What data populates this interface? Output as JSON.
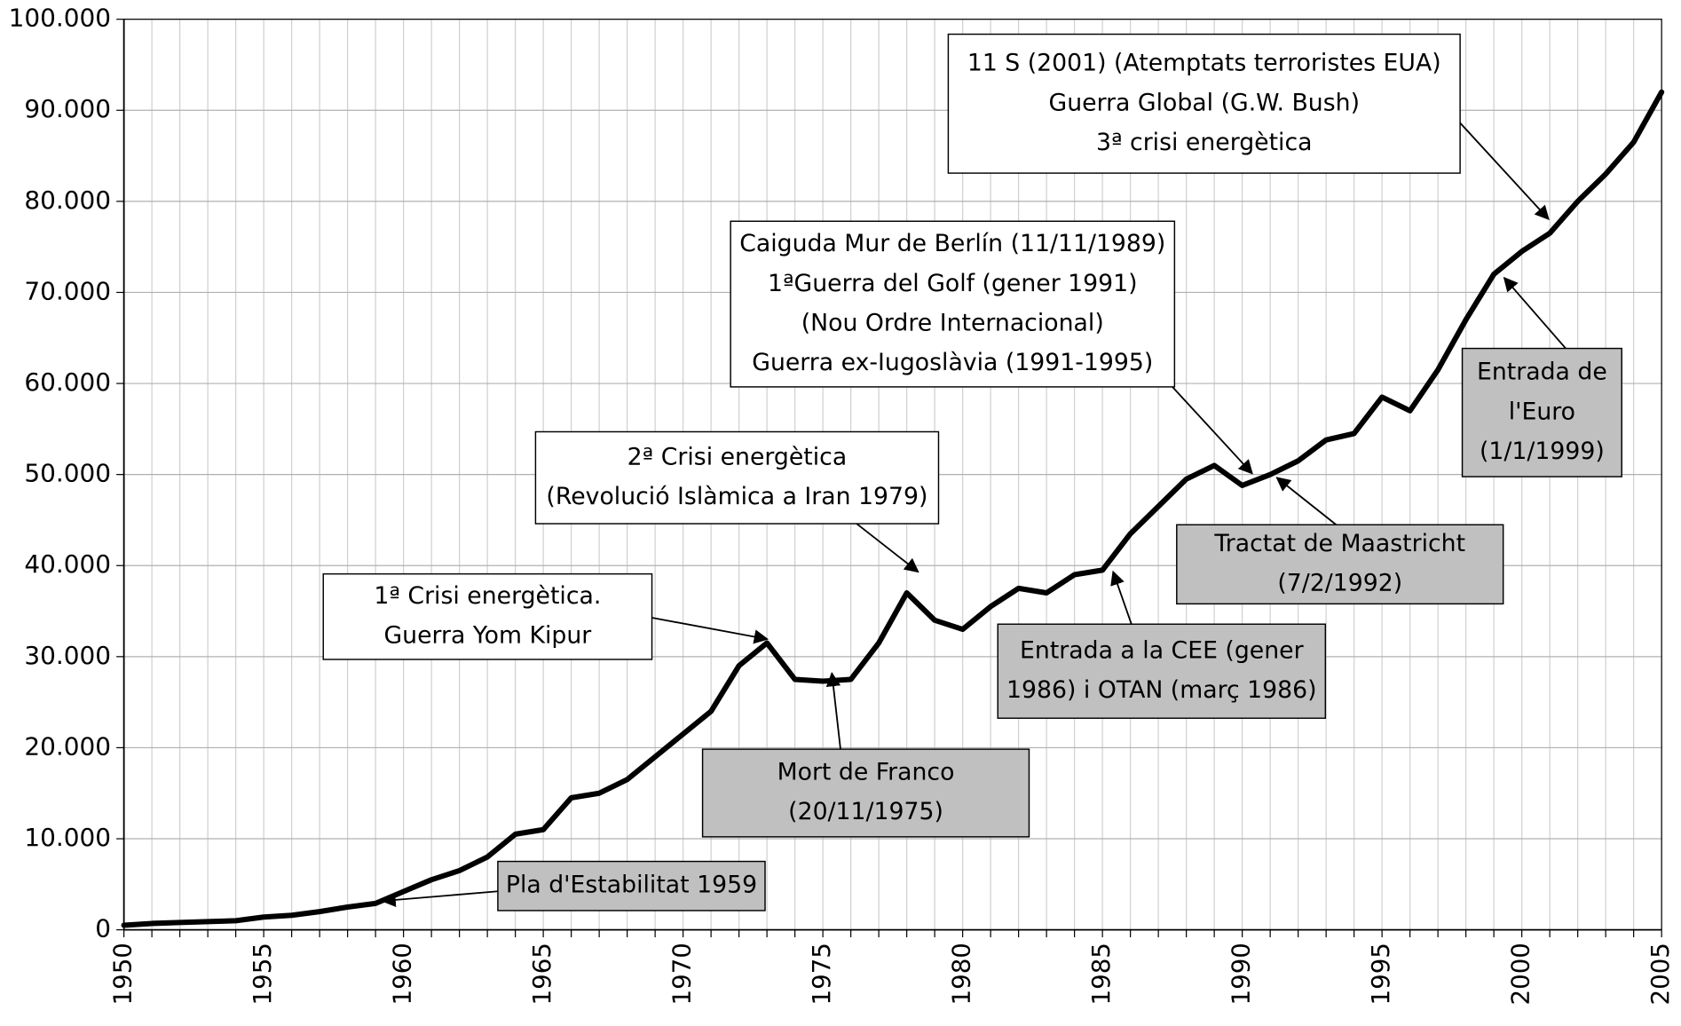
{
  "chart_data": {
    "type": "line",
    "x": [
      1950,
      1951,
      1952,
      1953,
      1954,
      1955,
      1956,
      1957,
      1958,
      1959,
      1960,
      1961,
      1962,
      1963,
      1964,
      1965,
      1966,
      1967,
      1968,
      1969,
      1970,
      1971,
      1972,
      1973,
      1974,
      1975,
      1976,
      1977,
      1978,
      1979,
      1980,
      1981,
      1982,
      1983,
      1984,
      1985,
      1986,
      1987,
      1988,
      1989,
      1990,
      1991,
      1992,
      1993,
      1994,
      1995,
      1996,
      1997,
      1998,
      1999,
      2000,
      2001,
      2002,
      2003,
      2004,
      2005
    ],
    "series": [
      {
        "color": "#000000",
        "values": [
          500,
          700,
          800,
          900,
          1000,
          1400,
          1600,
          2000,
          2500,
          2900,
          4200,
          5500,
          6500,
          8000,
          10500,
          11000,
          14500,
          15000,
          16500,
          19000,
          21500,
          24000,
          29000,
          31500,
          27500,
          27300,
          27500,
          31500,
          37000,
          34000,
          33000,
          35500,
          37500,
          37000,
          39000,
          39500,
          43500,
          46500,
          49500,
          51000,
          48800,
          50000,
          51500,
          53800,
          54500,
          58500,
          57000,
          61500,
          67000,
          72000,
          74500,
          76500,
          80000,
          83000,
          86500,
          92000
        ]
      }
    ],
    "xlim": [
      1950,
      2005
    ],
    "xticks": [
      1950,
      1955,
      1960,
      1965,
      1970,
      1975,
      1980,
      1985,
      1990,
      1995,
      2000,
      2005
    ],
    "ylim": [
      0,
      100000
    ],
    "yticks": [
      0,
      {
        "value": 10000,
        "label": "10.000"
      },
      {
        "value": 20000,
        "label": "20.000"
      },
      {
        "value": 30000,
        "label": "30.000"
      },
      {
        "value": 40000,
        "label": "40.000"
      },
      {
        "value": 50000,
        "label": "50.000"
      },
      {
        "value": 60000,
        "label": "60.000"
      },
      {
        "value": 70000,
        "label": "70.000"
      },
      {
        "value": 80000,
        "label": "80.000"
      },
      {
        "value": 90000,
        "label": "90.000"
      },
      {
        "value": 100000,
        "label": "100.000"
      }
    ],
    "grid": true,
    "annotations": [
      {
        "lines": [
          "11 S (2001) (Atemptats terroristes EUA)",
          "Guerra Global (G.W. Bush)",
          "3ª crisi energètica"
        ],
        "color": "#ffffff"
      },
      {
        "lines": [
          "Caiguda Mur de Berlín (11/11/1989)",
          "1ªGuerra del Golf (gener 1991)",
          "(Nou Ordre Internacional)",
          "Guerra ex-Iugoslàvia (1991-1995)"
        ],
        "color": "#ffffff"
      },
      {
        "lines": [
          "2ª Crisi energètica",
          "(Revolució Islàmica a Iran 1979)"
        ],
        "color": "#ffffff"
      },
      {
        "lines": [
          "1ª Crisi energètica.",
          "Guerra Yom Kipur"
        ],
        "color": "#ffffff"
      },
      {
        "lines": [
          "Mort de Franco",
          "(20/11/1975)"
        ],
        "color": "#c0c0c0"
      },
      {
        "lines": [
          "Entrada a la CEE (gener",
          "1986) i OTAN (març 1986)"
        ],
        "color": "#c0c0c0"
      },
      {
        "lines": [
          "Tractat de Maastricht",
          "(7/2/1992)"
        ],
        "color": "#c0c0c0"
      },
      {
        "lines": [
          "Entrada de",
          "l'Euro",
          "(1/1/1999)"
        ],
        "color": "#c0c0c0"
      },
      {
        "lines": [
          "Pla d'Estabilitat 1959"
        ],
        "color": "#c0c0c0"
      }
    ]
  }
}
